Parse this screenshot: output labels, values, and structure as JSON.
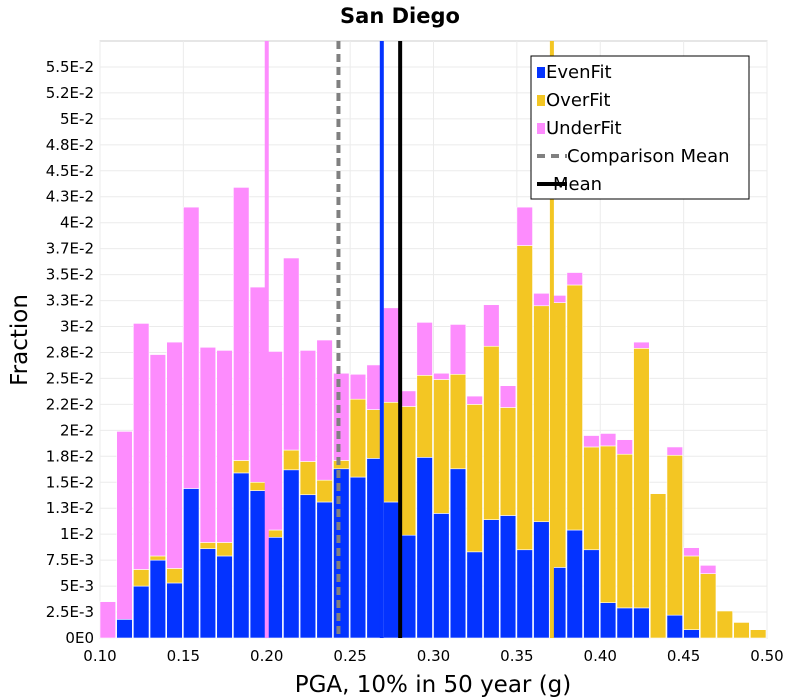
{
  "chart_data": {
    "type": "bar",
    "stacked": true,
    "title": "San Diego",
    "xlabel": "PGA, 10% in 50 year (g)",
    "ylabel": "Fraction",
    "xlim": [
      0.1,
      0.5
    ],
    "ylim": [
      0,
      0.0575
    ],
    "bin_width": 0.01,
    "xticks": [
      "0.10",
      "0.15",
      "0.20",
      "0.25",
      "0.30",
      "0.35",
      "0.40",
      "0.45",
      "0.50"
    ],
    "xtick_values": [
      0.1,
      0.15,
      0.2,
      0.25,
      0.3,
      0.35,
      0.4,
      0.45,
      0.5
    ],
    "yticks": [
      "0E0",
      "2.5E-3",
      "5E-3",
      "7.5E-3",
      "1E-2",
      "1.3E-2",
      "1.5E-2",
      "1.8E-2",
      "2E-2",
      "2.2E-2",
      "2.5E-2",
      "2.8E-2",
      "3E-2",
      "3.3E-2",
      "3.5E-2",
      "3.7E-2",
      "4E-2",
      "4.3E-2",
      "4.5E-2",
      "4.8E-2",
      "5E-2",
      "5.2E-2",
      "5.5E-2"
    ],
    "ytick_values": [
      0,
      0.0025,
      0.005,
      0.0075,
      0.01,
      0.0125,
      0.015,
      0.0175,
      0.02,
      0.0225,
      0.025,
      0.0275,
      0.03,
      0.0325,
      0.035,
      0.0375,
      0.04,
      0.0425,
      0.045,
      0.0475,
      0.05,
      0.0525,
      0.055
    ],
    "grid": true,
    "legend_position": "top-right",
    "bin_starts": [
      0.1,
      0.11,
      0.12,
      0.13,
      0.14,
      0.15,
      0.16,
      0.17,
      0.18,
      0.19,
      0.2,
      0.21,
      0.22,
      0.23,
      0.24,
      0.25,
      0.26,
      0.27,
      0.28,
      0.29,
      0.3,
      0.31,
      0.32,
      0.33,
      0.34,
      0.35,
      0.36,
      0.37,
      0.38,
      0.39,
      0.4,
      0.41,
      0.42,
      0.43,
      0.44,
      0.45,
      0.46,
      0.47,
      0.48,
      0.49
    ],
    "series": [
      {
        "name": "EvenFit",
        "color": "#0433ff",
        "values": [
          0,
          0.0018,
          0.005,
          0.0075,
          0.0053,
          0.0144,
          0.0086,
          0.0079,
          0.0159,
          0.0142,
          0.0097,
          0.0162,
          0.0138,
          0.0131,
          0.0163,
          0.0155,
          0.0173,
          0.0131,
          0.0099,
          0.0174,
          0.012,
          0.0163,
          0.0083,
          0.0114,
          0.0118,
          0.0085,
          0.0112,
          0.0068,
          0.0104,
          0.0085,
          0.0034,
          0.0029,
          0.0029,
          0,
          0.0022,
          0.0008,
          0,
          0,
          0,
          0
        ]
      },
      {
        "name": "OverFit",
        "color": "#f3c623",
        "values": [
          0,
          0,
          0.0016,
          0.0004,
          0.0014,
          0,
          0.0006,
          0.0013,
          0.0012,
          0.0008,
          0.0007,
          0.0019,
          0.0032,
          0.0021,
          0.0008,
          0.0075,
          0.0047,
          0.0096,
          0.0124,
          0.0079,
          0.0129,
          0.0091,
          0.0142,
          0.0167,
          0.0104,
          0.0293,
          0.0208,
          0.0255,
          0.0236,
          0.0099,
          0.0151,
          0.0148,
          0.025,
          0.0139,
          0.0154,
          0.0071,
          0.0062,
          0.0026,
          0.0015,
          0.0008
        ]
      },
      {
        "name": "UnderFit",
        "color": "#fd8cfd",
        "values": [
          0.0035,
          0.0181,
          0.0237,
          0.0194,
          0.0218,
          0.0271,
          0.0188,
          0.0185,
          0.0263,
          0.0188,
          0.0172,
          0.0185,
          0.0107,
          0.0135,
          0.0084,
          0.0024,
          0.0043,
          0.0091,
          0.0015,
          0.0051,
          0.0006,
          0.0048,
          0.0008,
          0.004,
          0.0021,
          0.0037,
          0.0012,
          0.0007,
          0.0012,
          0.0011,
          0.0012,
          0.0014,
          0.0006,
          0,
          0.0008,
          0.0008,
          0.0008,
          0,
          0,
          0
        ]
      }
    ],
    "reference_lines": [
      {
        "name": "Comparison Mean",
        "x": 0.243,
        "color": "#808080",
        "style": "dashed"
      },
      {
        "name": "Mean",
        "x": 0.28,
        "color": "#000000",
        "style": "solid"
      },
      {
        "name": "EvenFit mean",
        "x": 0.269,
        "color": "#0433ff",
        "style": "solid"
      },
      {
        "name": "OverFit mean",
        "x": 0.371,
        "color": "#f3c623",
        "style": "solid"
      },
      {
        "name": "UnderFit mean",
        "x": 0.2,
        "color": "#fd8cfd",
        "style": "solid"
      }
    ],
    "legend": [
      "EvenFit",
      "OverFit",
      "UnderFit",
      "Comparison Mean",
      "Mean"
    ]
  }
}
